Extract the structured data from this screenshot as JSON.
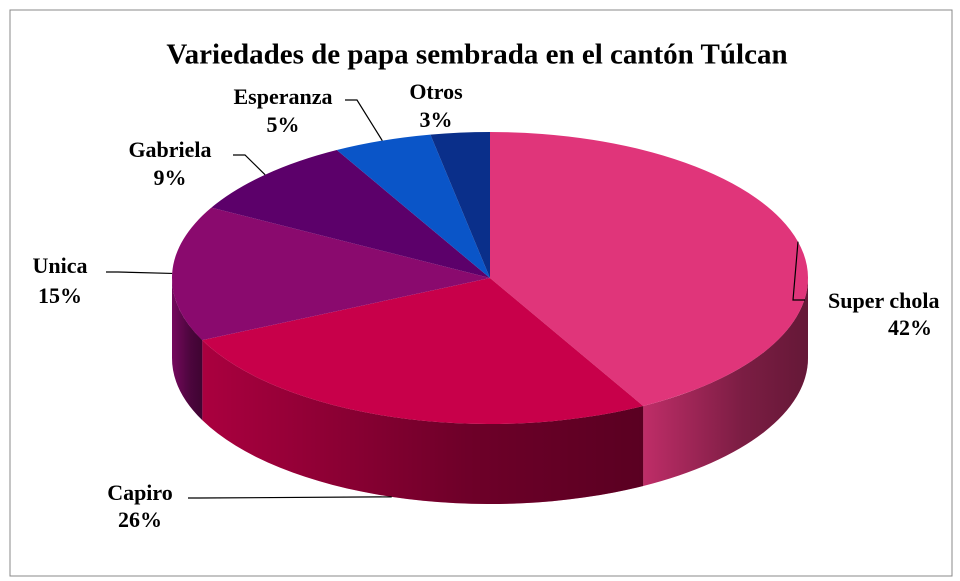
{
  "chart_data": {
    "type": "pie3d",
    "title": "Variedades de papa sembrada en el cantón Túlcan",
    "categories": [
      "Super chola",
      "Capiro",
      "Unica",
      "Gabriela",
      "Esperanza",
      "Otros"
    ],
    "values": [
      42,
      26,
      15,
      9,
      5,
      3
    ],
    "value_labels": [
      "42%",
      "26%",
      "15%",
      "9%",
      "5%",
      "3%"
    ],
    "colors": [
      "#e0357a",
      "#c8004a",
      "#8a0a6e",
      "#5c006a",
      "#0a55c8",
      "#0a2f8a"
    ]
  }
}
